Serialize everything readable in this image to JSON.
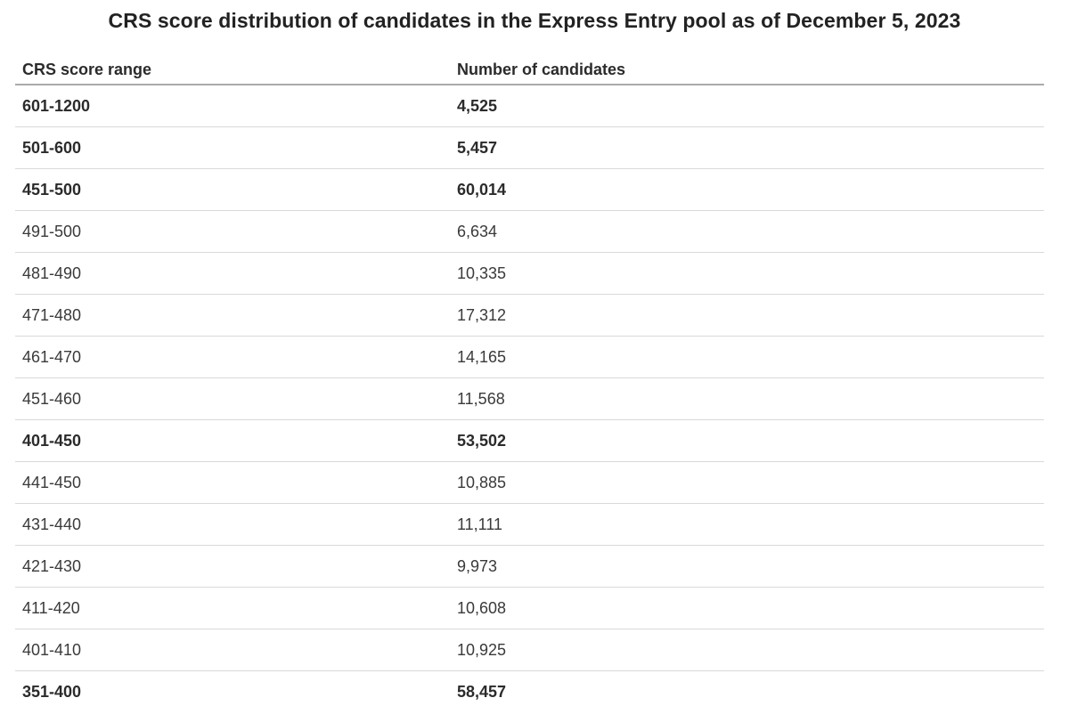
{
  "chart_data": {
    "type": "table",
    "title": "CRS score distribution of candidates in the Express Entry pool as of December 5, 2023",
    "columns": [
      "CRS score range",
      "Number of candidates"
    ],
    "rows": [
      {
        "range": "601-1200",
        "candidates": 4525,
        "display": "4,525",
        "bold": true
      },
      {
        "range": "501-600",
        "candidates": 5457,
        "display": "5,457",
        "bold": true
      },
      {
        "range": "451-500",
        "candidates": 60014,
        "display": "60,014",
        "bold": true
      },
      {
        "range": "491-500",
        "candidates": 6634,
        "display": "6,634",
        "bold": false
      },
      {
        "range": "481-490",
        "candidates": 10335,
        "display": "10,335",
        "bold": false
      },
      {
        "range": "471-480",
        "candidates": 17312,
        "display": "17,312",
        "bold": false
      },
      {
        "range": "461-470",
        "candidates": 14165,
        "display": "14,165",
        "bold": false
      },
      {
        "range": "451-460",
        "candidates": 11568,
        "display": "11,568",
        "bold": false
      },
      {
        "range": "401-450",
        "candidates": 53502,
        "display": "53,502",
        "bold": true
      },
      {
        "range": "441-450",
        "candidates": 10885,
        "display": "10,885",
        "bold": false
      },
      {
        "range": "431-440",
        "candidates": 11111,
        "display": "11,111",
        "bold": false
      },
      {
        "range": "421-430",
        "candidates": 9973,
        "display": "9,973",
        "bold": false
      },
      {
        "range": "411-420",
        "candidates": 10608,
        "display": "10,608",
        "bold": false
      },
      {
        "range": "401-410",
        "candidates": 10925,
        "display": "10,925",
        "bold": false
      },
      {
        "range": "351-400",
        "candidates": 58457,
        "display": "58,457",
        "bold": true
      }
    ],
    "layout": {
      "grid": "horizontal-row-separators-only",
      "header_border_color": "#ababab",
      "row_border_color": "#d9d9d9"
    }
  },
  "colors": {
    "background": "#ffffff",
    "title_text": "#222222",
    "bold_text": "#2b2b2b",
    "regular_text": "#3a3a3a",
    "header_border": "#ababab",
    "row_border": "#d9d9d9"
  }
}
